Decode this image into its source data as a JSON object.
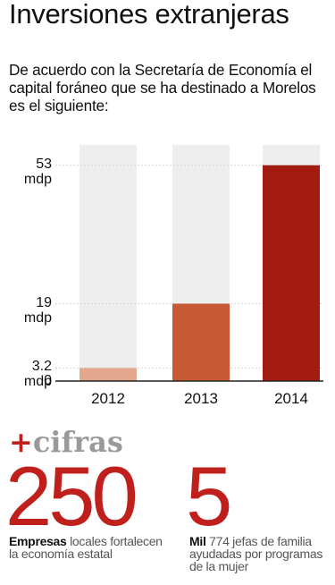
{
  "header": {
    "title": "Inversiones extranjeras",
    "subtitle": "De acuerdo con la Secretaría de Economía el capital foráneo que se ha destinado a Morelos es el siguiente:"
  },
  "chart_data": {
    "type": "bar",
    "categories": [
      "2012",
      "2013",
      "2014"
    ],
    "values": [
      3.2,
      19,
      53
    ],
    "unit": "mdp",
    "yticks": [
      {
        "value": 0,
        "label": "0",
        "unit": ""
      },
      {
        "value": 3.2,
        "label": "3.2",
        "unit": "mdp"
      },
      {
        "value": 19,
        "label": "19",
        "unit": "mdp"
      },
      {
        "value": 53,
        "label": "53",
        "unit": "mdp"
      }
    ],
    "ylim": [
      0,
      58
    ],
    "colors": [
      "#e2a78d",
      "#c75a33",
      "#a31a10"
    ],
    "background_color": "#eeeeee",
    "grid": true
  },
  "cifras": {
    "plus": "+",
    "title": "cifras",
    "items": [
      {
        "number": "250",
        "bold": "Empresas",
        "text": " locales fortalecen la economía estatal"
      },
      {
        "number": "5",
        "bold": "Mil",
        "text": " 774 jefas de familia ayudadas por programas de la mujer"
      }
    ]
  }
}
